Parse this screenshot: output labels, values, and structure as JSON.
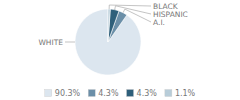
{
  "chart_data": {
    "type": "pie",
    "categories": [
      "WHITE",
      "A.I.",
      "HISPANIC",
      "BLACK"
    ],
    "values": [
      90.3,
      4.3,
      4.3,
      1.1
    ],
    "value_labels": [
      "90.3%",
      "4.3%",
      "4.3%",
      "1.1%"
    ],
    "colors": [
      "#dce6ef",
      "#6b8fa8",
      "#2e5f7a",
      "#b8cdd9"
    ],
    "legend": "bottom"
  }
}
